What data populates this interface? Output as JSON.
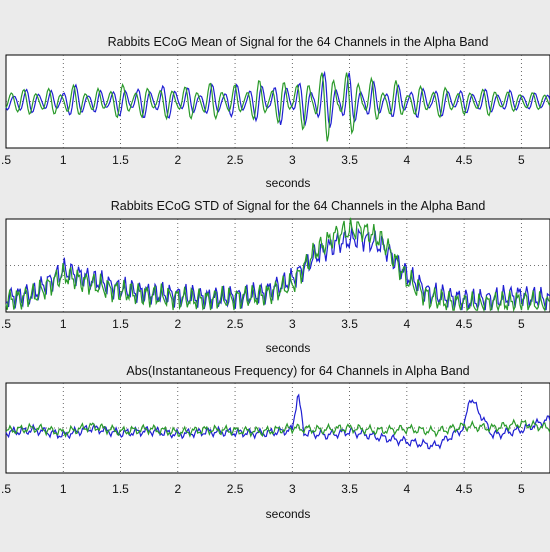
{
  "chart_data": [
    {
      "type": "line",
      "title": "Rabbits ECoG Mean  of Signal for the 64 Channels in the Alpha Band",
      "xlabel": "seconds",
      "ylabel": "",
      "xlim": [
        0.5,
        5.25
      ],
      "x_ticks": [
        ".5",
        "1",
        "1.5",
        "2",
        "2.5",
        "3",
        "3.5",
        "4",
        "4.5",
        "5"
      ],
      "grid": true,
      "series": [
        {
          "color": "#1f1fd2",
          "x": [
            0.5,
            0.7,
            0.9,
            1.1,
            1.3,
            1.5,
            1.7,
            1.9,
            2.1,
            2.3,
            2.5,
            2.7,
            2.9,
            3.1,
            3.3,
            3.5,
            3.7,
            3.9,
            4.1,
            4.3,
            4.5,
            4.7,
            4.9,
            5.1,
            5.25
          ],
          "y": [
            0.1,
            -0.2,
            0.15,
            -0.3,
            0.2,
            -0.25,
            0.3,
            -0.35,
            0.25,
            -0.3,
            0.35,
            -0.4,
            0.45,
            -0.5,
            0.7,
            -0.6,
            0.4,
            -0.35,
            0.3,
            -0.25,
            0.2,
            -0.2,
            0.15,
            -0.1,
            0.05
          ]
        },
        {
          "color": "#2a9a2a",
          "x": [
            0.5,
            0.7,
            0.9,
            1.1,
            1.3,
            1.5,
            1.7,
            1.9,
            2.1,
            2.3,
            2.5,
            2.7,
            2.9,
            3.1,
            3.3,
            3.5,
            3.7,
            3.9,
            4.1,
            4.3,
            4.5,
            4.7,
            4.9,
            5.1,
            5.25
          ],
          "y": [
            0.05,
            0.2,
            -0.25,
            0.3,
            -0.2,
            0.35,
            -0.3,
            0.3,
            -0.35,
            0.4,
            -0.3,
            0.45,
            -0.5,
            0.6,
            -0.9,
            0.8,
            -0.5,
            0.4,
            -0.3,
            0.3,
            -0.2,
            0.25,
            -0.15,
            0.1,
            0.0
          ]
        }
      ]
    },
    {
      "type": "line",
      "title": "Rabbits ECoG STD of Signal for the 64 Channels in the Alpha Band",
      "xlabel": "seconds",
      "ylabel": "",
      "xlim": [
        0.5,
        5.25
      ],
      "x_ticks": [
        ".5",
        "1",
        "1.5",
        "2",
        "2.5",
        "3",
        "3.5",
        "4",
        "4.5",
        "5"
      ],
      "grid": true,
      "series": [
        {
          "color": "#1f1fd2",
          "x": [
            0.5,
            0.75,
            1.0,
            1.25,
            1.5,
            1.75,
            2.0,
            2.25,
            2.5,
            2.75,
            3.0,
            3.2,
            3.4,
            3.6,
            3.8,
            4.0,
            4.2,
            4.4,
            4.6,
            4.8,
            5.0,
            5.25
          ],
          "y": [
            0.15,
            0.2,
            0.45,
            0.35,
            0.25,
            0.2,
            0.18,
            0.15,
            0.16,
            0.2,
            0.35,
            0.6,
            0.75,
            0.8,
            0.7,
            0.4,
            0.2,
            0.15,
            0.12,
            0.15,
            0.18,
            0.12
          ]
        },
        {
          "color": "#2a9a2a",
          "x": [
            0.5,
            0.75,
            1.0,
            1.25,
            1.5,
            1.75,
            2.0,
            2.25,
            2.5,
            2.75,
            3.0,
            3.2,
            3.4,
            3.6,
            3.8,
            4.0,
            4.2,
            4.4,
            4.6,
            4.8,
            5.0,
            5.25
          ],
          "y": [
            0.12,
            0.18,
            0.4,
            0.3,
            0.22,
            0.18,
            0.15,
            0.13,
            0.15,
            0.18,
            0.3,
            0.65,
            0.85,
            0.9,
            0.75,
            0.35,
            0.15,
            0.1,
            0.08,
            0.1,
            0.12,
            0.08
          ]
        }
      ]
    },
    {
      "type": "line",
      "title": "Abs(Instantaneous Frequency) for 64 Channels in Alpha Band",
      "xlabel": "seconds",
      "ylabel": "",
      "xlim": [
        0.5,
        5.25
      ],
      "x_ticks": [
        ".5",
        "1",
        "1.5",
        "2",
        "2.5",
        "3",
        "3.5",
        "4",
        "4.5",
        "5"
      ],
      "grid": true,
      "series": [
        {
          "color": "#1f1fd2",
          "x": [
            0.5,
            0.75,
            1.0,
            1.25,
            1.5,
            1.75,
            2.0,
            2.25,
            2.5,
            2.75,
            3.0,
            3.05,
            3.1,
            3.3,
            3.5,
            3.75,
            4.0,
            4.25,
            4.5,
            4.55,
            4.75,
            5.0,
            5.25
          ],
          "y": [
            0.45,
            0.48,
            0.42,
            0.5,
            0.44,
            0.47,
            0.43,
            0.46,
            0.45,
            0.44,
            0.48,
            0.9,
            0.45,
            0.42,
            0.46,
            0.4,
            0.35,
            0.3,
            0.5,
            0.85,
            0.42,
            0.48,
            0.6
          ]
        },
        {
          "color": "#2a9a2a",
          "x": [
            0.5,
            0.75,
            1.0,
            1.25,
            1.5,
            1.75,
            2.0,
            2.25,
            2.5,
            2.75,
            3.0,
            3.25,
            3.5,
            3.75,
            4.0,
            4.25,
            4.5,
            4.75,
            5.0,
            5.25
          ],
          "y": [
            0.47,
            0.5,
            0.45,
            0.52,
            0.46,
            0.49,
            0.45,
            0.48,
            0.47,
            0.46,
            0.5,
            0.48,
            0.5,
            0.47,
            0.49,
            0.46,
            0.52,
            0.5,
            0.55,
            0.5
          ]
        }
      ]
    }
  ]
}
